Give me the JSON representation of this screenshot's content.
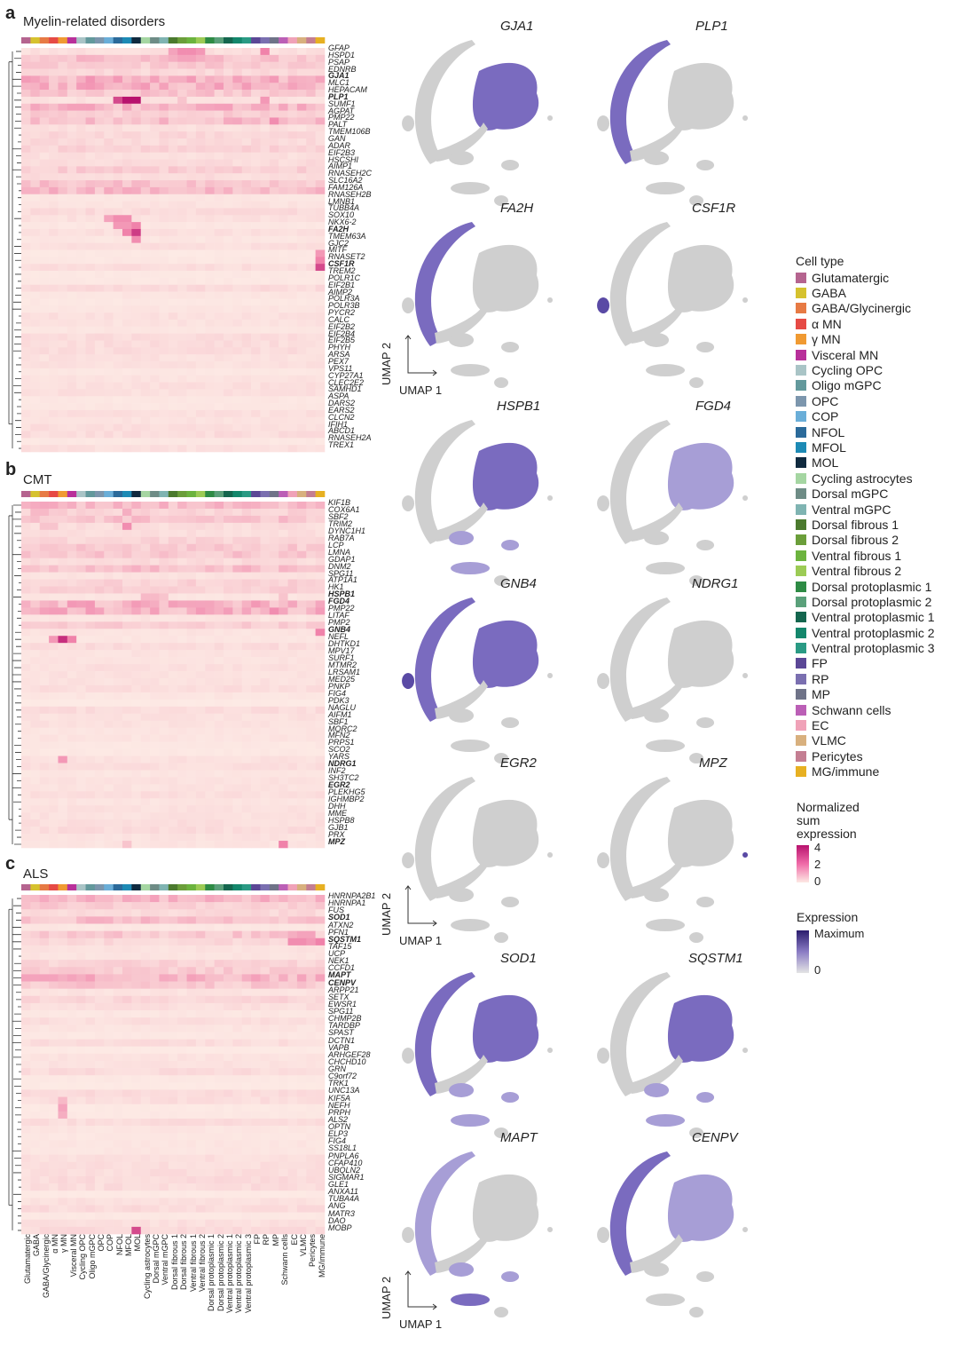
{
  "panels": [
    {
      "letter": "a",
      "title": "Myelin-related disorders",
      "genes": [
        "GFAP",
        "HSPD1",
        "PSAP",
        "EDNRB",
        "GJA1",
        "MLC1",
        "HEPACAM",
        "PLP1",
        "SUMF1",
        "AGPAT",
        "PMP22",
        "PALT",
        "TMEM106B",
        "GAN",
        "ADAR",
        "EIF2B3",
        "HSCSHI",
        "AIMP1",
        "RNASEH2C",
        "SLC16A2",
        "FAM126A",
        "RNASEH2B",
        "LMNB1",
        "TUBB4A",
        "SOX10",
        "NKX6-2",
        "FA2H",
        "TMEM63A",
        "GJC2",
        "MITF",
        "RNASET2",
        "CSF1R",
        "TREM2",
        "POLR1C",
        "EIF2B1",
        "AIMP2",
        "POLR3A",
        "POLR3B",
        "PYCR2",
        "CALC",
        "EIF2B2",
        "EIF2B4",
        "EIF2B5",
        "PHYH",
        "ARSA",
        "PEX7",
        "VPS11",
        "CYP27A1",
        "CLEC2E2",
        "SAMHD1",
        "ASPA",
        "DARS2",
        "EARS2",
        "CLCN2",
        "IFIH1",
        "ABCD1",
        "RNASEH2A",
        "TREX1"
      ],
      "highlight": [
        "GJA1",
        "PLP1",
        "FA2H",
        "CSF1R"
      ]
    },
    {
      "letter": "b",
      "title": "CMT",
      "genes": [
        "KIF1B",
        "COX6A1",
        "SBF2",
        "TRIM2",
        "DYNC1H1",
        "RAB7A",
        "LCP",
        "LMNA",
        "GDAP1",
        "DNM2",
        "SPG11",
        "ATP1A1",
        "HK1",
        "HSPB1",
        "FGD4",
        "PMP22",
        "LITAF",
        "PMP2",
        "GNB4",
        "NEFL",
        "DHTKD1",
        "MPV17",
        "SURF1",
        "MTMR2",
        "LRSAM1",
        "MED25",
        "PNKP",
        "FIG4",
        "PDK3",
        "NAGLU",
        "AIFM1",
        "SBF1",
        "MORC2",
        "MFN2",
        "PRPS1",
        "SCO2",
        "YARS",
        "NDRG1",
        "INF2",
        "SH3TC2",
        "EGR2",
        "PLEKHG5",
        "IGHMBP2",
        "DHH",
        "MME",
        "HSPB8",
        "GJB1",
        "PRX",
        "MPZ"
      ],
      "highlight": [
        "HSPB1",
        "FGD4",
        "GNB4",
        "NDRG1",
        "EGR2",
        "MPZ"
      ]
    },
    {
      "letter": "c",
      "title": "ALS",
      "genes": [
        "HNRNPA2B1",
        "HNRNPA1",
        "FUS",
        "SOD1",
        "ATXN2",
        "PFN1",
        "SQSTM1",
        "TAF15",
        "UCP",
        "NEK1",
        "CCFD1",
        "MAPT",
        "CENPV",
        "ARPP21",
        "SETX",
        "EWSR1",
        "SPG11",
        "CHMP2B",
        "TARDBP",
        "SPAST",
        "DCTN1",
        "VAPB",
        "ARHGEF28",
        "CHCHD10",
        "GRN",
        "C9orf72",
        "TRK1",
        "UNC13A",
        "KIF5A",
        "NEFH",
        "PRPH",
        "ALS2",
        "OPTN",
        "ELP3",
        "FIG4",
        "SS18L1",
        "PNPLA6",
        "CFAP410",
        "UBQLN2",
        "SIGMAR1",
        "GLE1",
        "ANXA11",
        "TUBA4A",
        "ANG",
        "MATR3",
        "DAO",
        "MOBP"
      ],
      "highlight": [
        "SOD1",
        "SQSTM1",
        "MAPT",
        "CENPV"
      ]
    }
  ],
  "cell_types": [
    {
      "name": "Glutamatergic",
      "color": "#b5648f"
    },
    {
      "name": "GABA",
      "color": "#d6c22e"
    },
    {
      "name": "GABA/Glycinergic",
      "color": "#e77a44"
    },
    {
      "name": "α MN",
      "color": "#e64a45"
    },
    {
      "name": "γ MN",
      "color": "#f09a32"
    },
    {
      "name": "Visceral MN",
      "color": "#b8309a"
    },
    {
      "name": "Cycling OPC",
      "color": "#a9c4c6"
    },
    {
      "name": "Oligo mGPC",
      "color": "#63999c"
    },
    {
      "name": "OPC",
      "color": "#7c96ad"
    },
    {
      "name": "COP",
      "color": "#6aaed8"
    },
    {
      "name": "NFOL",
      "color": "#2b6a9a"
    },
    {
      "name": "MFOL",
      "color": "#1d8ab5"
    },
    {
      "name": "MOL",
      "color": "#102a3f"
    },
    {
      "name": "Cycling astrocytes",
      "color": "#a5d6a2"
    },
    {
      "name": "Dorsal mGPC",
      "color": "#6e8c86"
    },
    {
      "name": "Ventral mGPC",
      "color": "#7fb4b2"
    },
    {
      "name": "Dorsal fibrous 1",
      "color": "#4b7a2e"
    },
    {
      "name": "Dorsal fibrous 2",
      "color": "#6b9e3a"
    },
    {
      "name": "Ventral fibrous 1",
      "color": "#6cb33e"
    },
    {
      "name": "Ventral fibrous 2",
      "color": "#9ccb55"
    },
    {
      "name": "Dorsal protoplasmic 1",
      "color": "#2e8b45"
    },
    {
      "name": "Dorsal protoplasmic 2",
      "color": "#5aa07a"
    },
    {
      "name": "Ventral protoplasmic 1",
      "color": "#14664e"
    },
    {
      "name": "Ventral protoplasmic 2",
      "color": "#14876c"
    },
    {
      "name": "Ventral protoplasmic 3",
      "color": "#2a9a84"
    },
    {
      "name": "FP",
      "color": "#5b4796"
    },
    {
      "name": "RP",
      "color": "#7a6fb0"
    },
    {
      "name": "MP",
      "color": "#6f7388"
    },
    {
      "name": "Schwann cells",
      "color": "#bb5fb6"
    },
    {
      "name": "EC",
      "color": "#f0a2b8"
    },
    {
      "name": "VLMC",
      "color": "#d8b07e"
    },
    {
      "name": "Pericytes",
      "color": "#c47e92"
    },
    {
      "name": "MG/immune",
      "color": "#e7b022"
    }
  ],
  "legend": {
    "cell_type_title": "Cell type",
    "sum_title": "Normalized sum expression",
    "sum_ticks": [
      "4",
      "2",
      "0"
    ],
    "expr_title": "Expression",
    "expr_max": "Maximum",
    "expr_zero": "0"
  },
  "umap": {
    "axis_x": "UMAP 1",
    "axis_y": "UMAP 2",
    "genes": [
      "GJA1",
      "PLP1",
      "FA2H",
      "CSF1R",
      "HSPB1",
      "FGD4",
      "GNB4",
      "NDRG1",
      "EGR2",
      "MPZ",
      "SOD1",
      "SQSTM1",
      "MAPT",
      "CENPV"
    ]
  }
}
